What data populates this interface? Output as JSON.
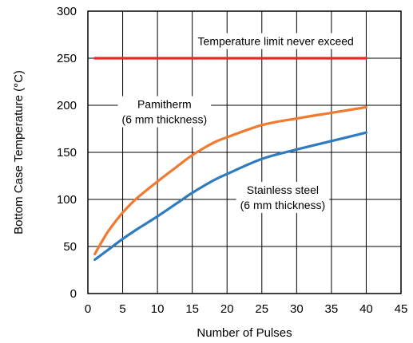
{
  "chart_data": {
    "type": "line",
    "xlabel": "Number of Pulses",
    "ylabel": "Bottom Case Temperature (°C)",
    "xlim": [
      0,
      45
    ],
    "ylim": [
      0,
      300
    ],
    "x_ticks": [
      "0",
      "5",
      "10",
      "15",
      "20",
      "25",
      "30",
      "35",
      "40",
      "45"
    ],
    "y_ticks": [
      "0",
      "50",
      "100",
      "150",
      "200",
      "250",
      "300"
    ],
    "grid": true,
    "series": [
      {
        "name": "Pamitherm (6 mm thickness)",
        "color": "#f07a30",
        "x": [
          1,
          2,
          3,
          5,
          7,
          10,
          13,
          15,
          18,
          20,
          25,
          30,
          35,
          40
        ],
        "y": [
          42,
          55,
          67,
          86,
          101,
          119,
          136,
          147,
          160,
          166,
          179,
          186,
          192,
          198
        ]
      },
      {
        "name": "Stainless steel (6 mm thickness)",
        "color": "#2f7bbf",
        "x": [
          1,
          3,
          5,
          7,
          10,
          13,
          15,
          18,
          20,
          25,
          30,
          35,
          40
        ],
        "y": [
          36,
          47,
          58,
          68,
          82,
          97,
          107,
          120,
          127,
          143,
          153,
          162,
          171
        ]
      },
      {
        "name": "Temperature limit never exceed",
        "color": "#e8282c",
        "x": [
          1,
          40
        ],
        "y": [
          250,
          250
        ]
      }
    ],
    "annotations": [
      {
        "lines": [
          "Temperature limit never exceed"
        ],
        "x": 27,
        "y": 264
      },
      {
        "lines": [
          "Pamitherm",
          "(6 mm thickness)"
        ],
        "x": 11,
        "y": 197
      },
      {
        "lines": [
          "Stainless steel",
          "(6 mm thickness)"
        ],
        "x": 28,
        "y": 106
      }
    ]
  }
}
